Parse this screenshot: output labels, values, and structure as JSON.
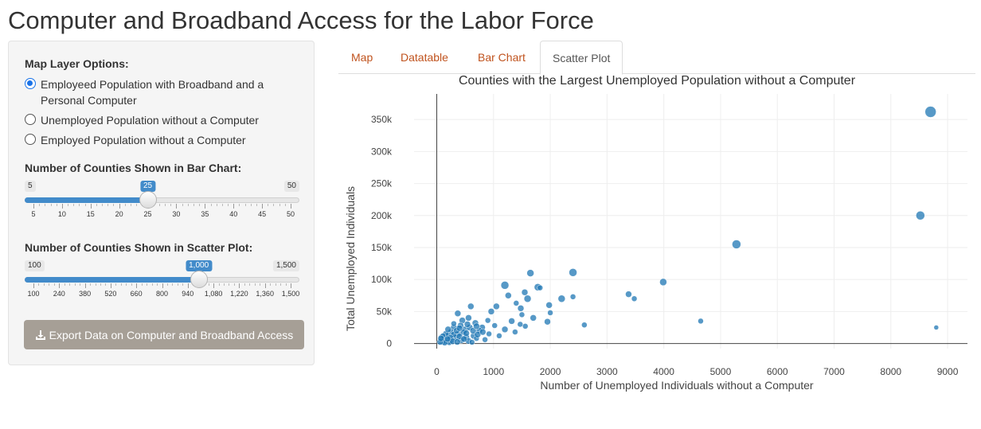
{
  "app": {
    "title": "Computer and Broadband Access for the Labor Force"
  },
  "sidebar": {
    "map_layer_label": "Map Layer Options:",
    "radio_options": [
      {
        "label": "Employeed Population with Broadband and a Personal Computer",
        "checked": true
      },
      {
        "label": "Unemployed Population without a Computer",
        "checked": false
      },
      {
        "label": "Employed Population without a Computer",
        "checked": false
      }
    ],
    "bar_slider": {
      "label": "Number of Counties Shown in Bar Chart:",
      "min": "5",
      "max": "50",
      "value": "25",
      "min_num": 5,
      "max_num": 50,
      "value_num": 25,
      "ticks": [
        "5",
        "10",
        "15",
        "20",
        "25",
        "30",
        "35",
        "40",
        "45",
        "50"
      ]
    },
    "scatter_slider": {
      "label": "Number of Counties Shown in Scatter Plot:",
      "min": "100",
      "max": "1,500",
      "value": "1,000",
      "min_num": 100,
      "max_num": 1500,
      "value_num": 1000,
      "ticks": [
        "100",
        "240",
        "380",
        "520",
        "660",
        "800",
        "940",
        "1,080",
        "1,220",
        "1,360",
        "1,500"
      ]
    },
    "export_button": "Export Data on Computer and Broadband Access"
  },
  "tabs": [
    {
      "label": "Map",
      "active": false
    },
    {
      "label": "Datatable",
      "active": false
    },
    {
      "label": "Bar Chart",
      "active": false
    },
    {
      "label": "Scatter Plot",
      "active": true
    }
  ],
  "colors": {
    "accent": "#428bca",
    "tab_link": "#c0531e",
    "point": "#1f77b4",
    "button": "#a69f96"
  },
  "icons": {
    "export": "download-icon"
  },
  "chart_data": {
    "type": "scatter",
    "title": "Counties with the Largest Unemployed Population without a Computer",
    "xlabel": "Number of Unemployed Individuals without a Computer",
    "ylabel": "Total Unemployed Individuals",
    "xlim": [
      -400,
      9350
    ],
    "ylim": [
      -8000,
      390000
    ],
    "x_ticks": [
      0,
      1000,
      2000,
      3000,
      4000,
      5000,
      6000,
      7000,
      8000,
      9000
    ],
    "x_tick_labels": [
      "0",
      "1000",
      "2000",
      "3000",
      "4000",
      "5000",
      "6000",
      "7000",
      "8000",
      "9000"
    ],
    "y_ticks": [
      0,
      50000,
      100000,
      150000,
      200000,
      250000,
      300000,
      350000
    ],
    "y_tick_labels": [
      "0",
      "50k",
      "100k",
      "150k",
      "200k",
      "250k",
      "300k",
      "350k"
    ],
    "grid": true,
    "legend": "none",
    "points": [
      {
        "x": 8700,
        "y": 362000,
        "size": 7
      },
      {
        "x": 8520,
        "y": 200000,
        "size": 5.5
      },
      {
        "x": 5280,
        "y": 155000,
        "size": 5.5
      },
      {
        "x": 3990,
        "y": 96000,
        "size": 4.5
      },
      {
        "x": 4650,
        "y": 35000,
        "size": 3.5
      },
      {
        "x": 8800,
        "y": 25000,
        "size": 3
      },
      {
        "x": 3380,
        "y": 77000,
        "size": 4
      },
      {
        "x": 3480,
        "y": 70000,
        "size": 3.5
      },
      {
        "x": 2400,
        "y": 111000,
        "size": 5
      },
      {
        "x": 1650,
        "y": 110000,
        "size": 4.5
      },
      {
        "x": 1200,
        "y": 91000,
        "size": 5
      },
      {
        "x": 2200,
        "y": 70000,
        "size": 4.5
      },
      {
        "x": 2400,
        "y": 73000,
        "size": 3.5
      },
      {
        "x": 2600,
        "y": 29000,
        "size": 3.5
      },
      {
        "x": 1780,
        "y": 88000,
        "size": 4.5
      },
      {
        "x": 1820,
        "y": 87000,
        "size": 3.5
      },
      {
        "x": 1260,
        "y": 75000,
        "size": 4
      },
      {
        "x": 1550,
        "y": 80000,
        "size": 4
      },
      {
        "x": 1600,
        "y": 70000,
        "size": 4.5
      },
      {
        "x": 1980,
        "y": 60000,
        "size": 4
      },
      {
        "x": 2000,
        "y": 48000,
        "size": 3.5
      },
      {
        "x": 1480,
        "y": 55000,
        "size": 4
      },
      {
        "x": 1400,
        "y": 63000,
        "size": 3.5
      },
      {
        "x": 1050,
        "y": 58000,
        "size": 4
      },
      {
        "x": 960,
        "y": 50000,
        "size": 4
      },
      {
        "x": 1700,
        "y": 40000,
        "size": 4
      },
      {
        "x": 1500,
        "y": 45000,
        "size": 3.5
      },
      {
        "x": 1320,
        "y": 35000,
        "size": 4
      },
      {
        "x": 1470,
        "y": 30000,
        "size": 3.5
      },
      {
        "x": 1950,
        "y": 34000,
        "size": 4
      },
      {
        "x": 1560,
        "y": 27000,
        "size": 3.5
      },
      {
        "x": 1380,
        "y": 18000,
        "size": 3.5
      },
      {
        "x": 1200,
        "y": 22000,
        "size": 4
      },
      {
        "x": 1020,
        "y": 28000,
        "size": 3.5
      },
      {
        "x": 900,
        "y": 36000,
        "size": 3.5
      },
      {
        "x": 800,
        "y": 25000,
        "size": 4
      },
      {
        "x": 600,
        "y": 58000,
        "size": 4
      },
      {
        "x": 370,
        "y": 47000,
        "size": 4
      },
      {
        "x": 450,
        "y": 36000,
        "size": 4
      },
      {
        "x": 560,
        "y": 40000,
        "size": 4
      },
      {
        "x": 680,
        "y": 32000,
        "size": 4
      },
      {
        "x": 750,
        "y": 20000,
        "size": 4
      },
      {
        "x": 920,
        "y": 15000,
        "size": 3.5
      },
      {
        "x": 1100,
        "y": 12000,
        "size": 3.5
      },
      {
        "x": 850,
        "y": 6000,
        "size": 3.5
      },
      {
        "x": 650,
        "y": 12000,
        "size": 4
      },
      {
        "x": 500,
        "y": 22000,
        "size": 4
      },
      {
        "x": 420,
        "y": 28000,
        "size": 4
      },
      {
        "x": 300,
        "y": 25000,
        "size": 4
      },
      {
        "x": 250,
        "y": 18000,
        "size": 4
      },
      {
        "x": 380,
        "y": 15000,
        "size": 4
      },
      {
        "x": 520,
        "y": 10000,
        "size": 4
      },
      {
        "x": 700,
        "y": 8000,
        "size": 3.5
      },
      {
        "x": 200,
        "y": 12000,
        "size": 4
      },
      {
        "x": 150,
        "y": 8000,
        "size": 4
      },
      {
        "x": 120,
        "y": 5000,
        "size": 4
      },
      {
        "x": 100,
        "y": 3000,
        "size": 4
      },
      {
        "x": 180,
        "y": 4000,
        "size": 4
      },
      {
        "x": 260,
        "y": 6000,
        "size": 4
      },
      {
        "x": 330,
        "y": 9000,
        "size": 4
      },
      {
        "x": 430,
        "y": 5000,
        "size": 4
      },
      {
        "x": 560,
        "y": 4000,
        "size": 4
      },
      {
        "x": 620,
        "y": 2000,
        "size": 3.5
      },
      {
        "x": 90,
        "y": 10000,
        "size": 4
      },
      {
        "x": 220,
        "y": 2000,
        "size": 4
      },
      {
        "x": 300,
        "y": 14000,
        "size": 4
      },
      {
        "x": 470,
        "y": 18000,
        "size": 4
      },
      {
        "x": 580,
        "y": 25000,
        "size": 4
      },
      {
        "x": 350,
        "y": 20000,
        "size": 4
      },
      {
        "x": 160,
        "y": 15000,
        "size": 4
      },
      {
        "x": 80,
        "y": 6000,
        "size": 4
      },
      {
        "x": 240,
        "y": 9000,
        "size": 4
      },
      {
        "x": 400,
        "y": 11000,
        "size": 4
      },
      {
        "x": 520,
        "y": 16000,
        "size": 4
      },
      {
        "x": 640,
        "y": 20000,
        "size": 4
      },
      {
        "x": 720,
        "y": 14000,
        "size": 4
      },
      {
        "x": 810,
        "y": 18000,
        "size": 4
      },
      {
        "x": 140,
        "y": 1500,
        "size": 4
      },
      {
        "x": 280,
        "y": 3500,
        "size": 4
      },
      {
        "x": 360,
        "y": 2500,
        "size": 4
      },
      {
        "x": 480,
        "y": 7000,
        "size": 4
      },
      {
        "x": 110,
        "y": 12000,
        "size": 3.5
      },
      {
        "x": 200,
        "y": 22000,
        "size": 4
      },
      {
        "x": 540,
        "y": 30000,
        "size": 4
      },
      {
        "x": 400,
        "y": 24000,
        "size": 4
      },
      {
        "x": 700,
        "y": 27000,
        "size": 4
      },
      {
        "x": 300,
        "y": 31000,
        "size": 3.5
      },
      {
        "x": 190,
        "y": 7000,
        "size": 4
      },
      {
        "x": 60,
        "y": 2500,
        "size": 4
      },
      {
        "x": 75,
        "y": 8000,
        "size": 4
      }
    ]
  }
}
